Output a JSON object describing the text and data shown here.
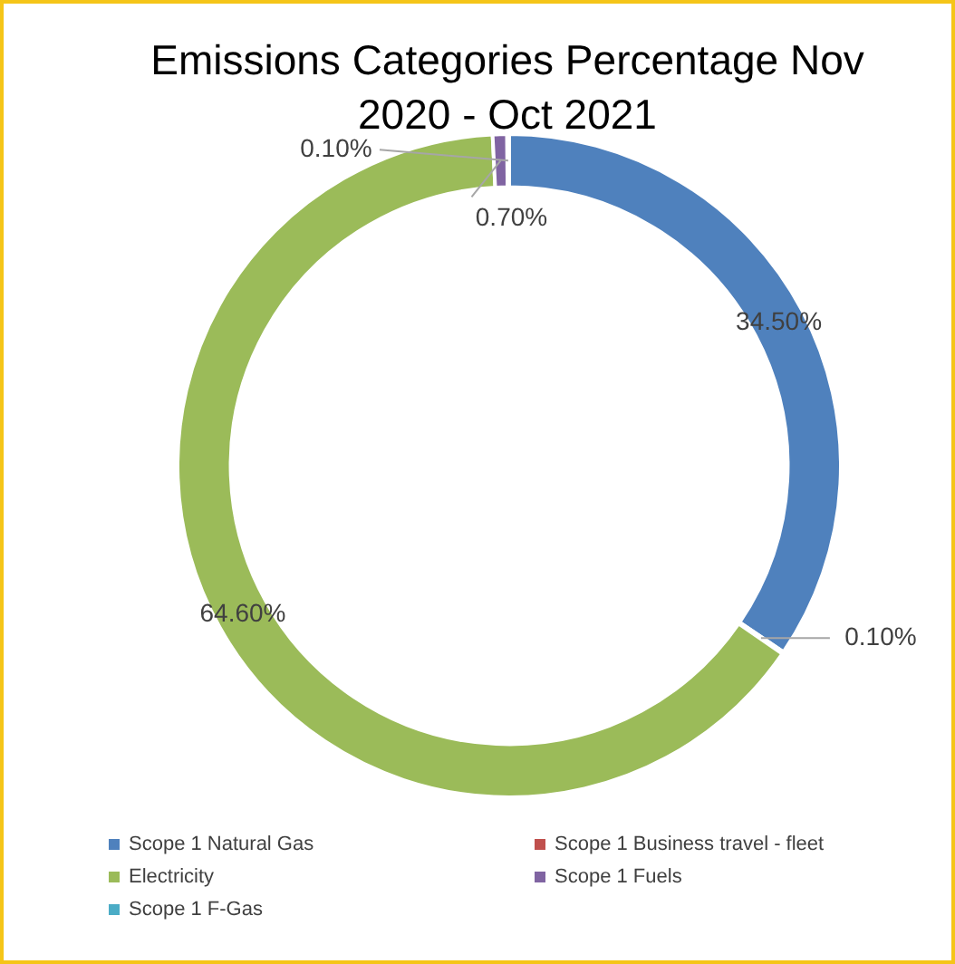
{
  "chart_data": {
    "type": "donut",
    "title": "Emissions Categories Percentage Nov 2020 - Oct 2021",
    "categories": [
      "Scope 1 Natural Gas",
      "Scope 1 Business travel - fleet",
      "Electricity",
      "Scope 1 Fuels",
      "Scope 1 F-Gas"
    ],
    "values": [
      34.5,
      0.1,
      64.6,
      0.7,
      0.1
    ],
    "value_labels": [
      "34.50%",
      "0.10%",
      "64.60%",
      "0.70%",
      "0.10%"
    ],
    "colors": [
      "#4f81bd",
      "#c0504d",
      "#9bbb59",
      "#8064a2",
      "#4bacc6"
    ],
    "legend": "bottom"
  }
}
